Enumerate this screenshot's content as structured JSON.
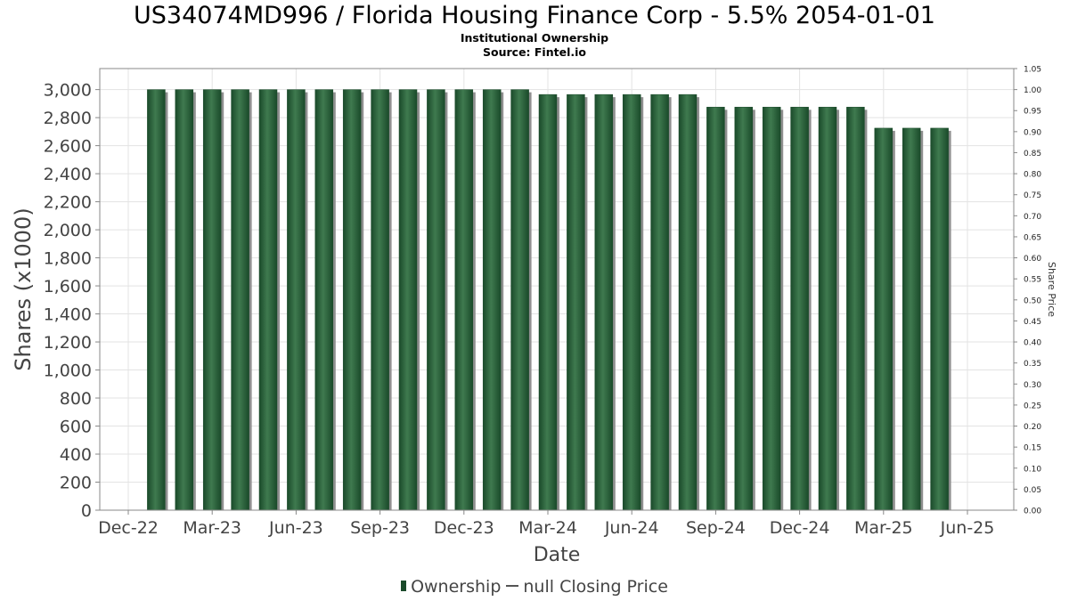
{
  "title": "US34074MD996 / Florida Housing Finance Corp - 5.5% 2054-01-01",
  "subtitle_1": "Institutional Ownership",
  "subtitle_2": "Source: Fintel.io",
  "colors": {
    "bar_fill": "#1a4a2a",
    "bar_highlight": "#3f7a4f",
    "bar_shadow": "#8f8f8f",
    "grid": "#e3e3e3",
    "axis_text": "#444444"
  },
  "legend": {
    "ownership_label": "Ownership",
    "price_label": "null Closing Price"
  },
  "chart_data": {
    "type": "bar",
    "xlabel": "Date",
    "ylabel": "Shares (x1000)",
    "y2label": "Share Price",
    "ylim": [
      0,
      3150
    ],
    "y2lim": [
      0,
      1.05
    ],
    "yticks": [
      0,
      200,
      400,
      600,
      800,
      1000,
      1200,
      1400,
      1600,
      1800,
      2000,
      2200,
      2400,
      2600,
      2800,
      3000
    ],
    "ytick_labels": [
      "0",
      "200",
      "400",
      "600",
      "800",
      "1,000",
      "1,200",
      "1,400",
      "1,600",
      "1,800",
      "2,000",
      "2,200",
      "2,400",
      "2,600",
      "2,800",
      "3,000"
    ],
    "y2tick_labels": [
      "0.00",
      "0.05",
      "0.10",
      "0.15",
      "0.20",
      "0.25",
      "0.30",
      "0.35",
      "0.40",
      "0.45",
      "0.50",
      "0.55",
      "0.60",
      "0.65",
      "0.70",
      "0.75",
      "0.80",
      "0.85",
      "0.90",
      "0.95",
      "1.00",
      "1.05"
    ],
    "xticks": [
      "Dec-22",
      "Mar-23",
      "Jun-23",
      "Sep-23",
      "Dec-23",
      "Mar-24",
      "Jun-24",
      "Sep-24",
      "Dec-24",
      "Mar-25",
      "Jun-25"
    ],
    "grid": true,
    "legend_position": "bottom",
    "series": [
      {
        "name": "Ownership",
        "values": [
          3000,
          3000,
          3000,
          3000,
          3000,
          3000,
          3000,
          3000,
          3000,
          3000,
          3000,
          3000,
          3000,
          3000,
          2965,
          2965,
          2965,
          2965,
          2965,
          2965,
          2875,
          2875,
          2875,
          2875,
          2875,
          2875,
          2725,
          2725,
          2725
        ]
      }
    ]
  }
}
